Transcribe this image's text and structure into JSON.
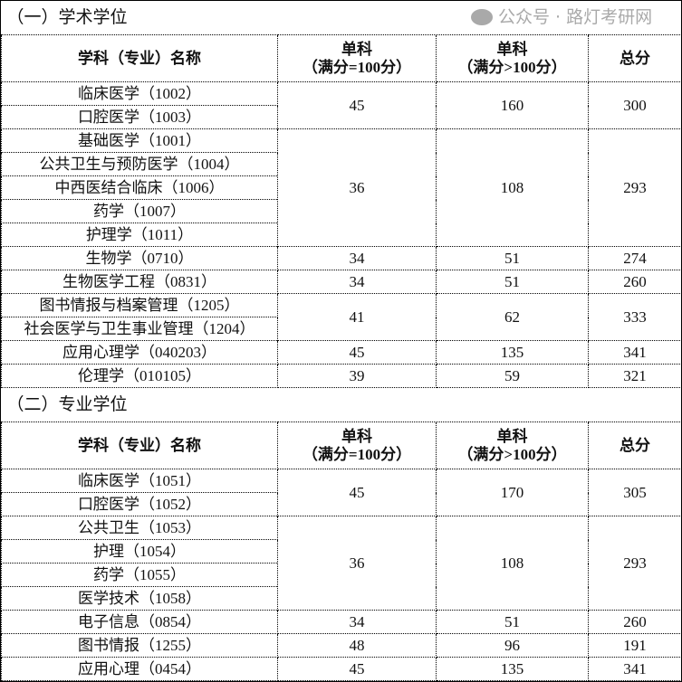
{
  "sections": [
    {
      "title": "（一）学术学位",
      "header": {
        "name": "学科（专业）名称",
        "col1": [
          "单科",
          "（满分=100分）"
        ],
        "col2": [
          "单科",
          "（满分>100分）"
        ],
        "total": "总分"
      },
      "groups": [
        {
          "names": [
            "临床医学（1002）",
            "口腔医学（1003）"
          ],
          "single100": "45",
          "singleOver": "160",
          "total": "300"
        },
        {
          "names": [
            "基础医学（1001）",
            "公共卫生与预防医学（1004）",
            "中西医结合临床（1006）",
            "药学（1007）",
            "护理学（1011）"
          ],
          "single100": "36",
          "singleOver": "108",
          "total": "293"
        },
        {
          "names": [
            "生物学（0710）"
          ],
          "single100": "34",
          "singleOver": "51",
          "total": "274"
        },
        {
          "names": [
            "生物医学工程（0831）"
          ],
          "single100": "34",
          "singleOver": "51",
          "total": "260"
        },
        {
          "names": [
            "图书情报与档案管理（1205）",
            "社会医学与卫生事业管理（1204）"
          ],
          "single100": "41",
          "singleOver": "62",
          "total": "333"
        },
        {
          "names": [
            "应用心理学（040203）"
          ],
          "single100": "45",
          "singleOver": "135",
          "total": "341"
        },
        {
          "names": [
            "伦理学（010105）"
          ],
          "single100": "39",
          "singleOver": "59",
          "total": "321"
        }
      ]
    },
    {
      "title": "（二）专业学位",
      "header": {
        "name": "学科（专业）名称",
        "col1": [
          "单科",
          "（满分=100分）"
        ],
        "col2": [
          "单科",
          "（满分>100分）"
        ],
        "total": "总分"
      },
      "groups": [
        {
          "names": [
            "临床医学（1051）",
            "口腔医学（1052）"
          ],
          "single100": "45",
          "singleOver": "170",
          "total": "305"
        },
        {
          "names": [
            "公共卫生（1053）",
            "护理（1054）",
            "药学（1055）",
            "医学技术（1058）"
          ],
          "single100": "36",
          "singleOver": "108",
          "total": "293"
        },
        {
          "names": [
            "电子信息（0854）"
          ],
          "single100": "34",
          "singleOver": "51",
          "total": "260"
        },
        {
          "names": [
            "图书情报（1255）"
          ],
          "single100": "48",
          "singleOver": "96",
          "total": "191"
        },
        {
          "names": [
            "应用心理（0454）"
          ],
          "single100": "45",
          "singleOver": "135",
          "total": "341"
        }
      ]
    }
  ],
  "watermark": "公众号 · 路灯考研网"
}
